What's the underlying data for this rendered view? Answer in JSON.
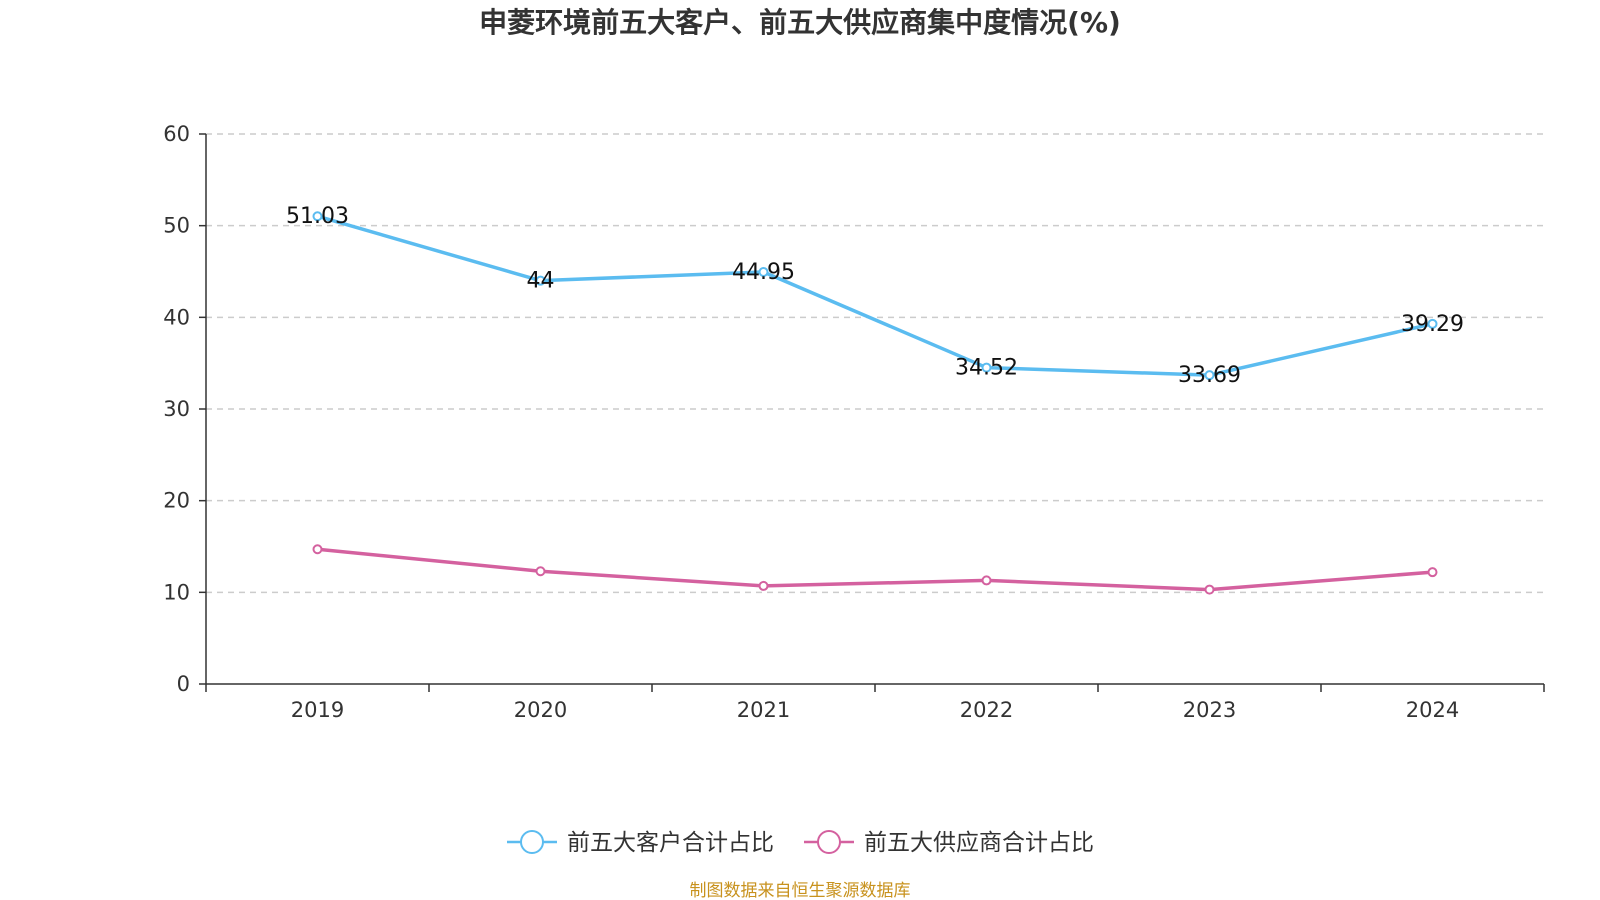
{
  "chart_data": {
    "type": "line",
    "title": "申菱环境前五大客户、前五大供应商集中度情况(%)",
    "categories": [
      "2019",
      "2020",
      "2021",
      "2022",
      "2023",
      "2024"
    ],
    "ylim": [
      0,
      60
    ],
    "yticks": [
      0,
      10,
      20,
      30,
      40,
      50,
      60
    ],
    "grid": true,
    "legend_position": "bottom",
    "series": [
      {
        "name": "前五大客户合计占比",
        "values": [
          51.03,
          44,
          44.95,
          34.52,
          33.69,
          39.29
        ],
        "labels": [
          "51.03",
          "44",
          "44.95",
          "34.52",
          "33.69",
          "39.29"
        ],
        "color": "#5bbcf0"
      },
      {
        "name": "前五大供应商合计占比",
        "values": [
          14.7,
          12.3,
          10.7,
          11.3,
          10.3,
          12.2
        ],
        "color": "#d4619f"
      }
    ]
  },
  "source_text": "制图数据来自恒生聚源数据库"
}
